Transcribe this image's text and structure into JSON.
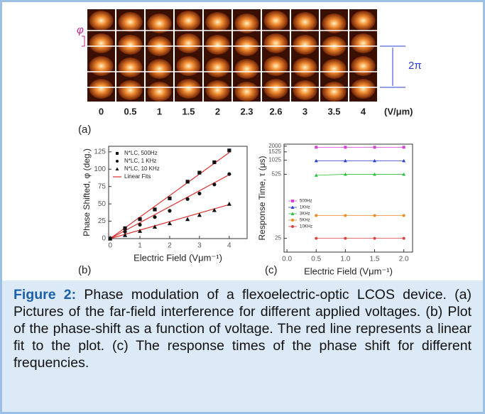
{
  "panel_a": {
    "voltages": [
      "0",
      "0.5",
      "1",
      "1.5",
      "2",
      "2.3",
      "2.6",
      "3",
      "3.5",
      "4"
    ],
    "unit": "(V/μm)",
    "phi": "φ",
    "two_pi": "2π",
    "label": "(a)"
  },
  "chart_data": [
    {
      "type": "scatter",
      "label": "(b)",
      "x_label": "Electric Field (Vμm⁻¹)",
      "y_label": "Phase Shifted, φ (deg.)",
      "xlim": [
        -0.05,
        4.6
      ],
      "ylim": [
        0,
        133
      ],
      "xticks": [
        0,
        1,
        2,
        3,
        4
      ],
      "yticks": [
        0,
        25,
        50,
        75,
        100,
        125
      ],
      "legend": "upper left",
      "log_y": false,
      "series": [
        {
          "name": "N*LC, 500Hz",
          "color": "#111111",
          "marker": "square",
          "x": [
            0,
            0.5,
            1,
            1.5,
            2,
            2.6,
            3,
            3.5,
            4
          ],
          "values": [
            0,
            15,
            28,
            42,
            58,
            82,
            95,
            110,
            127
          ]
        },
        {
          "name": "N*LC, 1 KHz",
          "color": "#111111",
          "marker": "circle",
          "x": [
            0,
            0.5,
            1,
            1.5,
            2,
            2.6,
            3,
            3.5,
            4
          ],
          "values": [
            0,
            10,
            20,
            31,
            40,
            57,
            65,
            78,
            93
          ]
        },
        {
          "name": "N*LC, 10 KHz",
          "color": "#111111",
          "marker": "triangle",
          "x": [
            0,
            0.5,
            1,
            1.5,
            2,
            2.6,
            3,
            3.5,
            4
          ],
          "values": [
            0,
            5,
            11,
            17,
            22,
            28,
            34,
            41,
            50
          ]
        }
      ],
      "fit_lines": {
        "name": "Linear Fits",
        "color": "#e03030",
        "x": [
          0,
          4
        ],
        "lines": [
          [
            0,
            124
          ],
          [
            0,
            92
          ],
          [
            0,
            49
          ]
        ]
      }
    },
    {
      "type": "scatter",
      "label": "(c)",
      "x_label": "Electric Field (Vμm⁻¹)",
      "y_label": "Response Time, τ (μs)",
      "xlim": [
        -0.05,
        2.15
      ],
      "ylim": [
        13,
        2200
      ],
      "log_y": true,
      "connect": true,
      "legend": "center left",
      "xticks": [
        {
          "value": 0,
          "label": "0.0"
        },
        {
          "value": 0.5,
          "label": "0.5"
        },
        {
          "value": 1,
          "label": "1.0"
        },
        {
          "value": 1.5,
          "label": "1.5"
        },
        {
          "value": 2,
          "label": "2.0"
        }
      ],
      "yticks": [
        25,
        525,
        1025,
        1525,
        2000
      ],
      "series": [
        {
          "name": "500Hz",
          "color": "#d43fd4",
          "marker": "square",
          "x": [
            0.5,
            1,
            1.5,
            2
          ],
          "values": [
            1900,
            1900,
            1900,
            1900
          ]
        },
        {
          "name": "1KHz",
          "color": "#2a3fd0",
          "marker": "triangle",
          "x": [
            0.5,
            1,
            1.5,
            2
          ],
          "values": [
            1000,
            1000,
            1000,
            1000
          ]
        },
        {
          "name": "3KHz",
          "color": "#2fbf3f",
          "marker": "triangle",
          "x": [
            0.5,
            1,
            1.5,
            2
          ],
          "values": [
            500,
            525,
            525,
            525
          ]
        },
        {
          "name": "5KHz",
          "color": "#f08a20",
          "marker": "circle",
          "x": [
            0.5,
            1,
            1.5,
            2
          ],
          "values": [
            74,
            74,
            74,
            74
          ]
        },
        {
          "name": "10KHz",
          "color": "#e04040",
          "marker": "circle",
          "x": [
            0.5,
            1,
            1.5,
            2
          ],
          "values": [
            25,
            25,
            25,
            25
          ]
        }
      ]
    }
  ],
  "caption": {
    "label": "Figure 2:",
    "text": "Phase modulation of a flexoelectric-optic LCOS device. (a) Pictures of the far-field interference for different applied voltages. (b) Plot of the phase-shift as a function of voltage. The red line represents a linear fit to the plot. (c) The response times of the phase shift for different frequencies."
  }
}
